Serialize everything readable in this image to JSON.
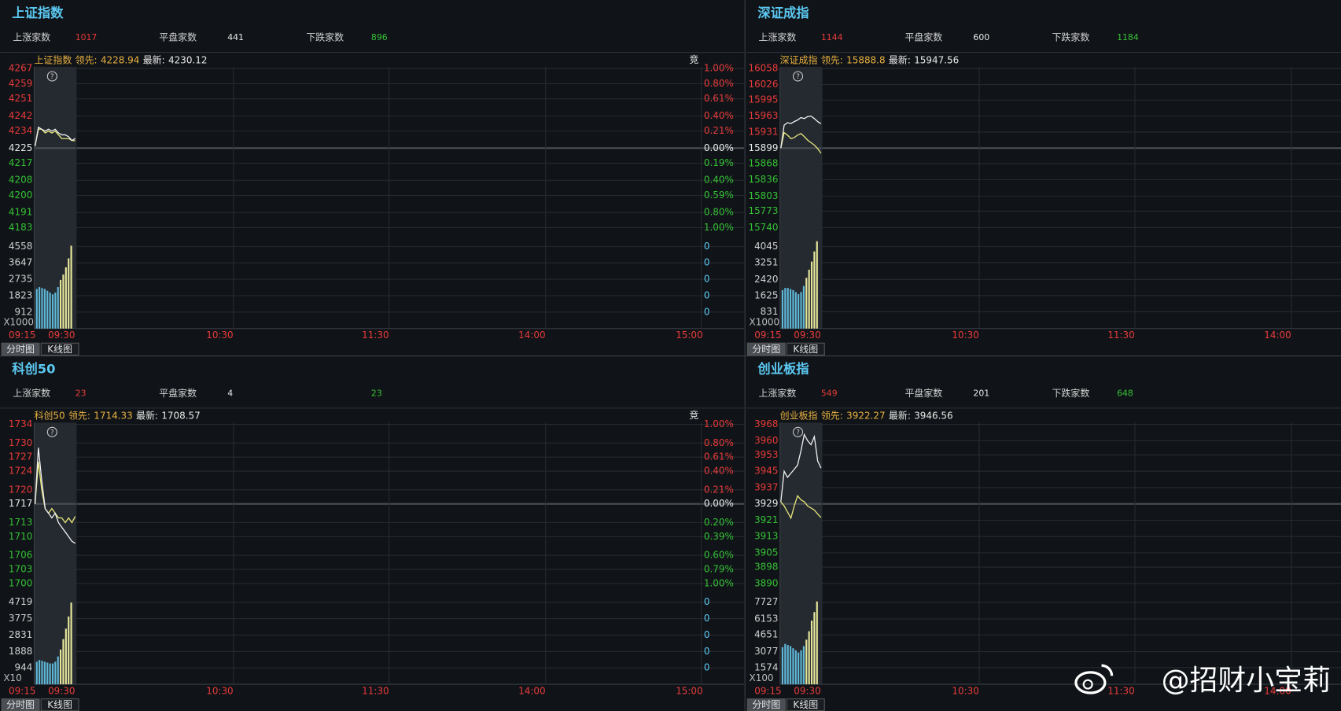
{
  "panels": [
    {
      "title": "上证指数",
      "stats": [
        {
          "label": "上涨家数",
          "value": 1017
        },
        {
          "label": "平盘家数",
          "value": 441
        },
        {
          "label": "下跌家数",
          "value": 896
        }
      ],
      "legend": {
        "name": "上证指数",
        "lead_label": "领先:",
        "lead": 4228.94,
        "latest_label": "最新:",
        "latest": 4230.12
      },
      "corner": "竞",
      "price_ticks": [
        4267,
        4259,
        4251,
        4242,
        4234,
        4225,
        4217,
        4208,
        4200,
        4191,
        4183
      ],
      "pct_ticks": [
        "1.00%",
        "0.80%",
        "0.61%",
        "0.40%",
        "0.21%",
        "0.00%",
        "0.19%",
        "0.40%",
        "0.59%",
        "0.80%",
        "1.00%"
      ],
      "vol_ticks": [
        4558,
        3647,
        2735,
        1823,
        912
      ],
      "vol_right_ticks": [
        0,
        0,
        0,
        0,
        0
      ],
      "vol_unit": "X1000",
      "x_ticks": [
        "09:15",
        "09:30",
        "10:30",
        "11:30",
        "14:00",
        "15:00"
      ],
      "tabs": [
        "分时图",
        "K线图"
      ],
      "price": [
        4226,
        4236,
        4235,
        4234,
        4235,
        4234,
        4235,
        4233,
        4232,
        4232,
        4231,
        4229,
        4230.12
      ],
      "lead": [
        4226,
        4235,
        4235,
        4233,
        4234,
        4233,
        4234,
        4232,
        4230,
        4230,
        4230,
        4229,
        4228.94
      ],
      "volume": [
        2200,
        2300,
        2250,
        2200,
        2100,
        2000,
        1900,
        2000,
        2300,
        2700,
        3000,
        3400,
        3900,
        4600
      ]
    },
    {
      "title": "深证成指",
      "stats": [
        {
          "label": "上涨家数",
          "value": 1144
        },
        {
          "label": "平盘家数",
          "value": 600
        },
        {
          "label": "下跌家数",
          "value": 1184
        }
      ],
      "legend": {
        "name": "深证成指",
        "lead_label": "领先:",
        "lead": 15888.8,
        "latest_label": "最新:",
        "latest": 15947.56
      },
      "price_ticks": [
        16058,
        16026,
        15995,
        15963,
        15931,
        15899,
        15868,
        15836,
        15803,
        15773,
        15740
      ],
      "vol_ticks": [
        4045,
        3251,
        2420,
        1625,
        831
      ],
      "vol_unit": "X1000",
      "x_ticks": [
        "09:15",
        "09:30",
        "10:30",
        "11:30",
        "14:00"
      ],
      "tabs": [
        "分时图",
        "K线图"
      ],
      "price": [
        15899,
        15945,
        15950,
        15948,
        15952,
        15955,
        15960,
        15958,
        15962,
        15963,
        15958,
        15952,
        15947.56
      ],
      "lead": [
        15899,
        15930,
        15925,
        15918,
        15920,
        15925,
        15928,
        15922,
        15915,
        15910,
        15905,
        15898,
        15888.8
      ],
      "volume": [
        1900,
        2000,
        2000,
        1950,
        1900,
        1800,
        1700,
        1800,
        2100,
        2500,
        2900,
        3300,
        3800,
        4300
      ]
    },
    {
      "title": "科创50",
      "stats": [
        {
          "label": "上涨家数",
          "value": 23
        },
        {
          "label": "平盘家数",
          "value": 4
        },
        {
          "value": 23
        }
      ],
      "legend": {
        "name": "科创50",
        "lead_label": "领先:",
        "lead": 1714.33,
        "latest_label": "最新:",
        "latest": 1708.57
      },
      "corner": "竞",
      "price_ticks": [
        1734,
        1730,
        1727,
        1724,
        1720,
        1717,
        1713,
        1710,
        1706,
        1703,
        1700
      ],
      "pct_ticks": [
        "1.00%",
        "0.80%",
        "0.61%",
        "0.40%",
        "0.21%",
        "0.00%",
        "0.20%",
        "0.39%",
        "0.60%",
        "0.79%",
        "1.00%"
      ],
      "vol_ticks": [
        4719,
        3775,
        2831,
        1888,
        944
      ],
      "vol_right_ticks": [
        0,
        0,
        0,
        0,
        0
      ],
      "vol_unit": "X10",
      "x_ticks": [
        "09:15",
        "09:30",
        "10:30",
        "11:30",
        "14:00",
        "15:00"
      ],
      "tabs": [
        "分时图",
        "K线图"
      ],
      "price": [
        1717,
        1729,
        1722,
        1716,
        1715,
        1714,
        1715,
        1713,
        1712,
        1711,
        1710,
        1709,
        1708.57
      ],
      "lead": [
        1717,
        1726,
        1720,
        1716,
        1715,
        1716,
        1715,
        1714,
        1714,
        1713,
        1714,
        1713,
        1714.33
      ],
      "volume": [
        1300,
        1400,
        1350,
        1300,
        1250,
        1200,
        1200,
        1300,
        1600,
        2000,
        2600,
        3200,
        3900,
        4700
      ]
    },
    {
      "title": "创业板指",
      "stats": [
        {
          "label": "上涨家数",
          "value": 549
        },
        {
          "label": "平盘家数",
          "value": 201
        },
        {
          "label": "下跌家数",
          "value": 648
        }
      ],
      "legend": {
        "name": "创业板指",
        "lead_label": "领先:",
        "lead": 3922.27,
        "latest_label": "最新:",
        "latest": 3946.56
      },
      "price_ticks": [
        3968,
        3960,
        3953,
        3945,
        3937,
        3929,
        3921,
        3913,
        3905,
        3898,
        3890
      ],
      "vol_ticks": [
        7727,
        6153,
        4651,
        3077,
        1574
      ],
      "vol_unit": "X100",
      "x_ticks": [
        "09:15",
        "09:30",
        "10:30",
        "11:30",
        "14:00"
      ],
      "tabs": [
        "分时图",
        "K线图"
      ],
      "price": [
        3930,
        3945,
        3942,
        3944,
        3946,
        3948,
        3955,
        3963,
        3960,
        3958,
        3962,
        3950,
        3946.56
      ],
      "lead": [
        3930,
        3928,
        3925,
        3922,
        3928,
        3933,
        3931,
        3930,
        3928,
        3927,
        3926,
        3924,
        3922.27
      ],
      "volume": [
        3500,
        3800,
        3700,
        3600,
        3400,
        3200,
        3000,
        3200,
        3600,
        4200,
        5000,
        6000,
        6800,
        7800
      ]
    }
  ],
  "watermark": "@招财小宝莉"
}
